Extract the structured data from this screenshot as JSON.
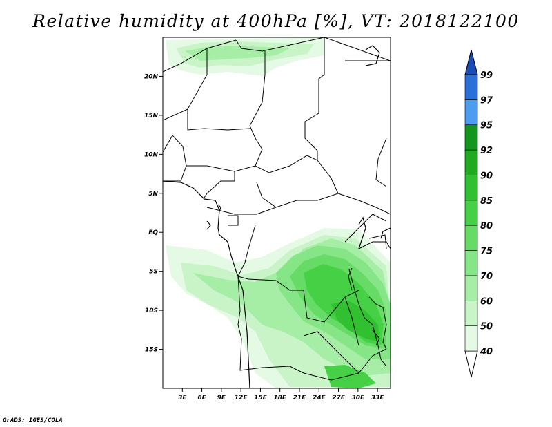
{
  "title": "Relative humidity at 400hPa [%], VT: 2018122100",
  "credit": "GrADS: IGES/COLA",
  "map": {
    "lat_labels": [
      "20N",
      "15N",
      "10N",
      "5N",
      "EQ",
      "5S",
      "10S",
      "15S"
    ],
    "lat_values": [
      20,
      15,
      10,
      5,
      0,
      -5,
      -10,
      -15
    ],
    "lon_labels": [
      "3E",
      "6E",
      "9E",
      "12E",
      "15E",
      "18E",
      "21E",
      "24E",
      "27E",
      "30E",
      "33E"
    ],
    "lon_values": [
      3,
      6,
      9,
      12,
      15,
      18,
      21,
      24,
      27,
      30,
      33
    ],
    "lon_range": [
      0,
      35
    ],
    "lat_range": [
      -20,
      25
    ]
  },
  "colorbar": {
    "levels": [
      "40",
      "50",
      "60",
      "70",
      "75",
      "80",
      "85",
      "90",
      "92",
      "95",
      "97",
      "99"
    ],
    "colors": [
      "#ffffff",
      "#e4fae4",
      "#c8f4c8",
      "#a6eea6",
      "#86e586",
      "#66dc66",
      "#46d046",
      "#30c030",
      "#20aa20",
      "#14961e",
      "#4c9cf0",
      "#2a70d8",
      "#1a4cb8"
    ]
  }
}
